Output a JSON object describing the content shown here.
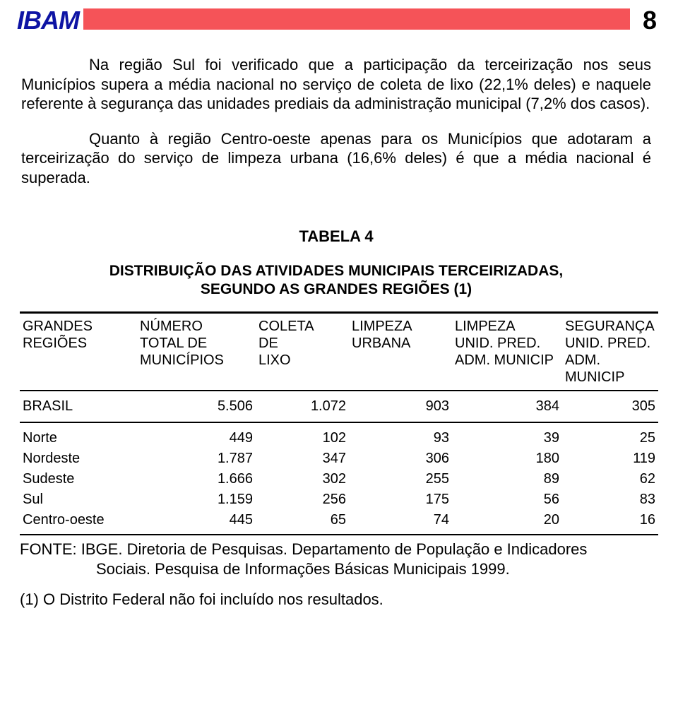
{
  "header": {
    "logo": "IBAM",
    "page_number": "8",
    "logo_color": "#0e14a4",
    "bar_color": "#f55358"
  },
  "paragraphs": {
    "p1": "Na região Sul foi verificado que a participação da terceirização nos seus Municípios supera a média nacional no serviço de coleta de lixo (22,1% deles) e naquele referente à segurança das unidades prediais da administração municipal (7,2% dos casos).",
    "p2": "Quanto à região Centro-oeste apenas para os Municípios que adotaram a terceirização do serviço de limpeza urbana (16,6% deles) é que a média nacional é superada."
  },
  "table": {
    "title": "TABELA 4",
    "subtitle_l1": "DISTRIBUIÇÃO DAS ATIVIDADES MUNICIPAIS TERCEIRIZADAS,",
    "subtitle_l2": "SEGUNDO AS GRANDES REGIÕES (1)",
    "columns": {
      "c1_l1": "GRANDES",
      "c1_l2": "REGIÕES",
      "c2_l1": "NÚMERO",
      "c2_l2": "TOTAL DE",
      "c2_l3": "MUNICÍPIOS",
      "c3_l1": "COLETA",
      "c3_l2": "DE",
      "c3_l3": "LIXO",
      "c4_l1": "LIMPEZA",
      "c4_l2": "URBANA",
      "c5_l1": "LIMPEZA",
      "c5_l2": "UNID. PRED.",
      "c5_l3": "ADM. MUNICIP",
      "c6_l1": "SEGURANÇA",
      "c6_l2": "UNID. PRED.",
      "c6_l3": "ADM. MUNICIP"
    },
    "rows": {
      "brasil": {
        "label": "BRASIL",
        "v1": "5.506",
        "v2": "1.072",
        "v3": "903",
        "v4": "384",
        "v5": "305"
      },
      "norte": {
        "label": "Norte",
        "v1": "449",
        "v2": "102",
        "v3": "93",
        "v4": "39",
        "v5": "25"
      },
      "nordeste": {
        "label": "Nordeste",
        "v1": "1.787",
        "v2": "347",
        "v3": "306",
        "v4": "180",
        "v5": "119"
      },
      "sudeste": {
        "label": "Sudeste",
        "v1": "1.666",
        "v2": "302",
        "v3": "255",
        "v4": "89",
        "v5": "62"
      },
      "sul": {
        "label": "Sul",
        "v1": "1.159",
        "v2": "256",
        "v3": "175",
        "v4": "56",
        "v5": "83"
      },
      "centro_oeste": {
        "label": "Centro-oeste",
        "v1": "445",
        "v2": "65",
        "v3": "74",
        "v4": "20",
        "v5": "16"
      }
    }
  },
  "notes": {
    "source_l1": "FONTE: IBGE. Diretoria de Pesquisas. Departamento de População e Indicadores",
    "source_l2": "Sociais. Pesquisa de Informações Básicas Municipais 1999.",
    "footnote": "(1) O Distrito Federal não foi incluído nos resultados."
  },
  "style": {
    "body_bg": "#ffffff",
    "text_color": "#000000",
    "font_body_size": 22,
    "font_table_size": 20
  }
}
